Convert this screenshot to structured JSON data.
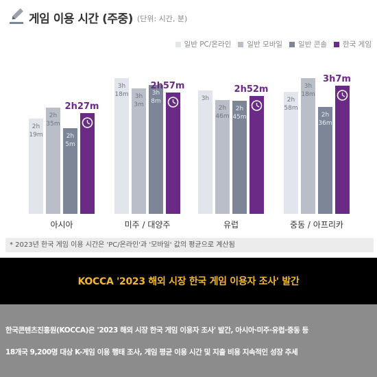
{
  "header": {
    "title": "게임 이용 시간 (주중)",
    "unit": "(단위: 시간, 분)"
  },
  "colors": {
    "pc": "#e3e5ec",
    "mobile": "#b9bec8",
    "console": "#7c8696",
    "korea": "#6b2a86",
    "accent_text": "#6b2a86"
  },
  "chart_data": {
    "type": "bar",
    "categories": [
      "아시아",
      "미주 / 대양주",
      "유럽",
      "중동 / 아프리카"
    ],
    "series": [
      {
        "name": "일반 PC/온라인",
        "values": [
          139,
          198,
          180,
          178
        ],
        "labels": [
          "2h\n19m",
          "3h\n18m",
          "3h",
          "2h\n58m"
        ]
      },
      {
        "name": "일반 모바일",
        "values": [
          155,
          183,
          166,
          198
        ],
        "labels": [
          "2h\n35m",
          "3h\n3m",
          "2h\n46m",
          "3h\n18m"
        ]
      },
      {
        "name": "일반 콘솔",
        "values": [
          125,
          188,
          165,
          156
        ],
        "labels": [
          "2h\n5m",
          "3h\n8m",
          "2h\n45m",
          "2h\n36m"
        ]
      },
      {
        "name": "한국 게임",
        "values": [
          147,
          177,
          172,
          187
        ],
        "labels": [
          "2h27m",
          "2h57m",
          "2h52m",
          "3h7m"
        ]
      }
    ],
    "unit": "minutes",
    "ylim": [
      0,
      220
    ]
  },
  "note": "* 2023년 한국 게임 이용 시간은 'PC/온라인'과 '모바일' 값의 평균으로 계산됨",
  "banner": {
    "title": "KOCCA '2023 해외 시장 한국 게임 이용자 조사' 발간"
  },
  "body": {
    "line1": "한국콘텐츠진흥원(KOCCA)은 '2023 해외 시장 한국 게임 이용자 조사' 발간, 아시아·미주·유럽·중동 등",
    "line2": "18개국 9,200명 대상 K-게임 이용 행태 조사, 게임 평균 이용 시간 및 지출 비용 지속적인 성장 추세"
  }
}
